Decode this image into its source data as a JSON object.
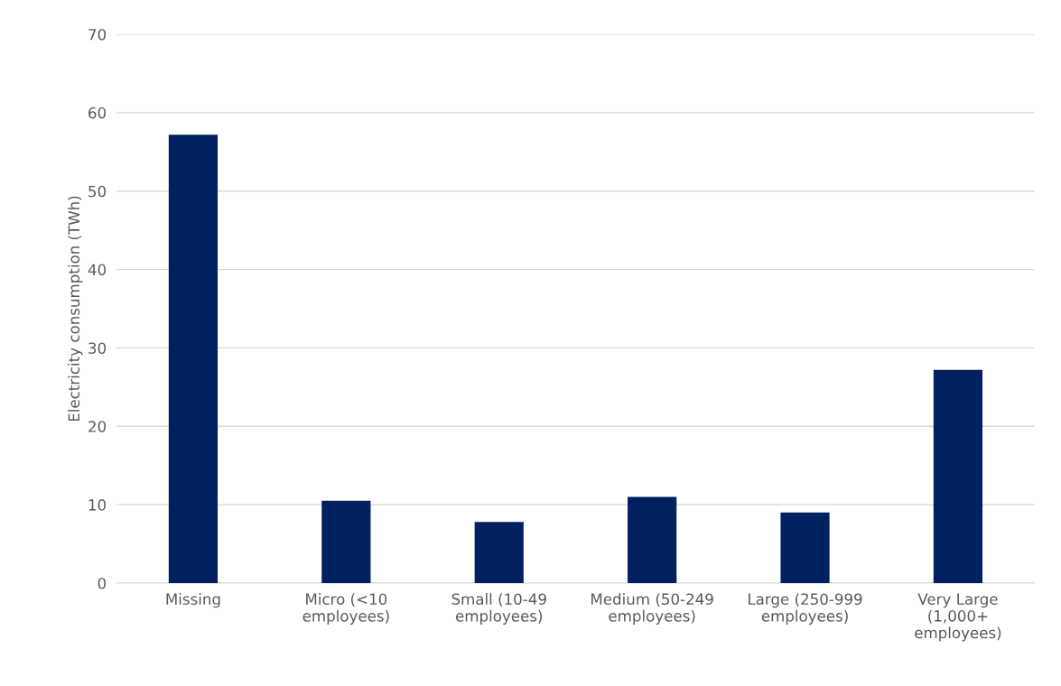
{
  "chart_data": {
    "type": "bar",
    "ylabel": "Electricity consumption (TWh)",
    "categories": [
      "Missing",
      "Micro (<10\nemployees)",
      "Small (10-49\nemployees)",
      "Medium (50-249\nemployees)",
      "Large (250-999\nemployees)",
      "Very Large\n(1,000+\nemployees)"
    ],
    "values": [
      57.2,
      10.5,
      7.8,
      11.0,
      9.0,
      27.2
    ],
    "color": "#002060",
    "ylim": [
      0,
      70
    ],
    "yticks": [
      0,
      10,
      20,
      30,
      40,
      50,
      60,
      70
    ],
    "grid": "y",
    "legend": false
  }
}
